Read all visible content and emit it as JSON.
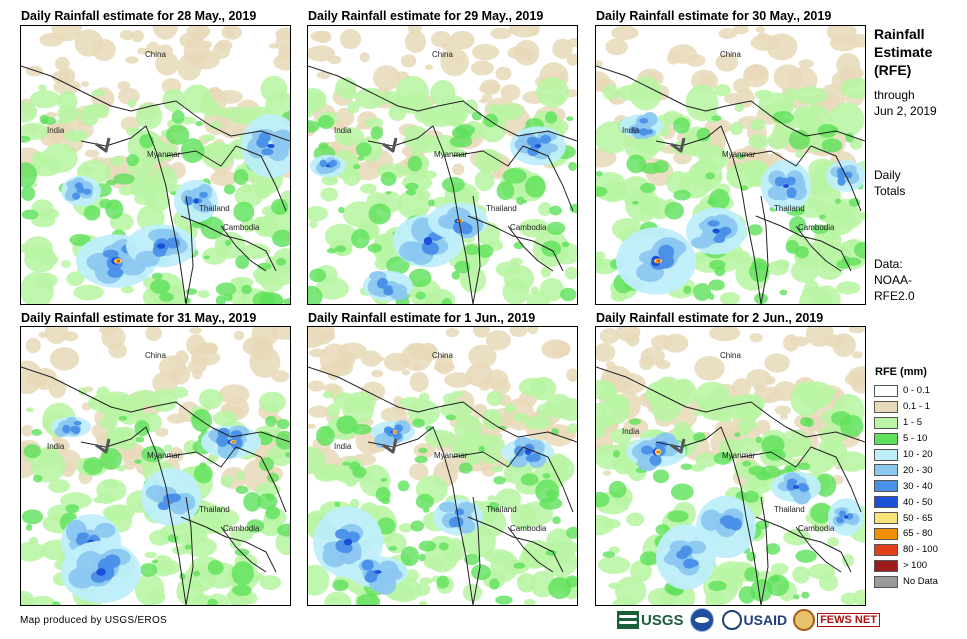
{
  "panels": [
    {
      "title": "Daily Rainfall estimate for 28 May., 2019"
    },
    {
      "title": "Daily Rainfall estimate for 29 May., 2019"
    },
    {
      "title": "Daily Rainfall estimate for 30 May., 2019"
    },
    {
      "title": "Daily Rainfall estimate for 31 May., 2019"
    },
    {
      "title": "Daily Rainfall estimate for 1 Jun., 2019"
    },
    {
      "title": "Daily Rainfall estimate for 2 Jun., 2019"
    }
  ],
  "map_labels": {
    "china": "China",
    "india": "India",
    "myanmar": "Myanmar",
    "thailand": "Thailand",
    "cambodia": "Cambodia"
  },
  "sidebar": {
    "heading_line1": "Rainfall",
    "heading_line2": "Estimate",
    "heading_line3": "(RFE)",
    "through_line1": "through",
    "through_line2": "Jun 2, 2019",
    "totals_line1": "Daily",
    "totals_line2": "Totals",
    "data_line1": "Data:",
    "data_line2": "NOAA-",
    "data_line3": "RFE2.0"
  },
  "legend": {
    "title": "RFE (mm)",
    "items": [
      {
        "label": "0 - 0.1",
        "color": "#ffffff"
      },
      {
        "label": "0.1 - 1",
        "color": "#e8d9b9"
      },
      {
        "label": "1 - 5",
        "color": "#b9f5a4"
      },
      {
        "label": "5 - 10",
        "color": "#5ee15a"
      },
      {
        "label": "10 - 20",
        "color": "#bfeefb"
      },
      {
        "label": "20 - 30",
        "color": "#8cc7f0"
      },
      {
        "label": "30 - 40",
        "color": "#4a8fe8"
      },
      {
        "label": "40 - 50",
        "color": "#1a4fd6"
      },
      {
        "label": "50 - 65",
        "color": "#f9e27a"
      },
      {
        "label": "65 - 80",
        "color": "#f28f00"
      },
      {
        "label": "80 - 100",
        "color": "#e0401a"
      },
      {
        "label": "> 100",
        "color": "#9e1b1b"
      },
      {
        "label": "No Data",
        "color": "#9a9a9a"
      }
    ]
  },
  "footer": {
    "credit": "Map produced by USGS/EROS",
    "logo_usgs": "USGS",
    "logo_usaid": "USAID",
    "logo_fews": "FEWS NET"
  }
}
